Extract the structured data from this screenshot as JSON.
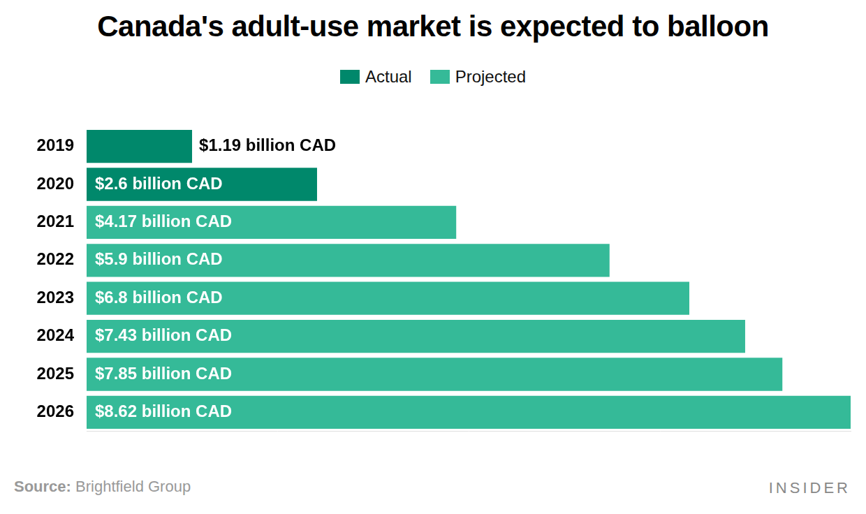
{
  "chart_data": {
    "type": "bar",
    "title": "Canada's adult-use market is expected to balloon",
    "source": "Source: Brightfield Group",
    "credit": "INSIDER",
    "orientation": "horizontal",
    "stacked": true,
    "data_labels": true,
    "grid": false,
    "legend": "top",
    "tick_labels": "y",
    "categories": [
      "2019",
      "2020",
      "2021",
      "2022",
      "2023",
      "2024",
      "2025",
      "2026"
    ],
    "xlim": [
      0,
      8.62
    ],
    "series": [
      {
        "name": "Actual",
        "color": "#00886b",
        "values": [
          1.19,
          2.6,
          null,
          null,
          null,
          null,
          null,
          null
        ],
        "value_labels": [
          "$1.19 billion CAD",
          "$2.6 billion CAD",
          null,
          null,
          null,
          null,
          null,
          null
        ]
      },
      {
        "name": "Projected",
        "color": "#35ba98",
        "values": [
          null,
          null,
          4.17,
          5.9,
          6.8,
          7.43,
          7.85,
          8.62
        ],
        "value_labels": [
          null,
          null,
          "$4.17 billion CAD",
          "$5.9 billion CAD",
          "$6.8 billion CAD",
          "$7.43 billion CAD",
          "$7.85 billion CAD",
          "$8.62 billion CAD"
        ]
      }
    ]
  }
}
